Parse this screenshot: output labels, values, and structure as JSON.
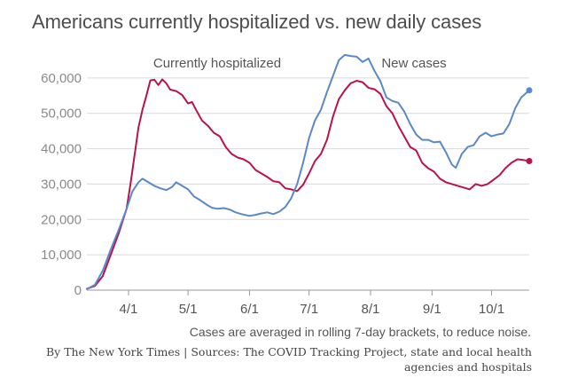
{
  "title": "Americans currently hospitalized vs. new daily cases",
  "note": "Cases are averaged in rolling 7-day brackets, to reduce noise.",
  "source": "By The New York Times | Sources: The COVID Tracking Project, state and local health agencies and hospitals",
  "chart_data": {
    "type": "line",
    "title": "Americans currently hospitalized vs. new daily cases",
    "xlabel": "",
    "ylabel": "",
    "x_axis_type": "date",
    "xlim": [
      "2020-03-11",
      "2020-10-20"
    ],
    "ylim": [
      0,
      70000
    ],
    "grid": "horizontal",
    "legend": "none (series labels placed directly on chart)",
    "x_ticks": [
      {
        "date": "2020-04-01",
        "label": "4/1"
      },
      {
        "date": "2020-05-01",
        "label": "5/1"
      },
      {
        "date": "2020-06-01",
        "label": "6/1"
      },
      {
        "date": "2020-07-01",
        "label": "7/1"
      },
      {
        "date": "2020-08-01",
        "label": "8/1"
      },
      {
        "date": "2020-09-01",
        "label": "9/1"
      },
      {
        "date": "2020-10-01",
        "label": "10/1"
      }
    ],
    "y_ticks": [
      {
        "value": 0,
        "label": "0"
      },
      {
        "value": 10000,
        "label": "10,000"
      },
      {
        "value": 20000,
        "label": "20,000"
      },
      {
        "value": 30000,
        "label": "30,000"
      },
      {
        "value": 40000,
        "label": "40,000"
      },
      {
        "value": 50000,
        "label": "50,000"
      },
      {
        "value": 60000,
        "label": "60,000"
      }
    ],
    "series": [
      {
        "name": "Currently hospitalized",
        "color": "#b8134f",
        "points": [
          [
            "2020-03-11",
            400
          ],
          [
            "2020-03-15",
            1200
          ],
          [
            "2020-03-19",
            4000
          ],
          [
            "2020-03-23",
            10000
          ],
          [
            "2020-03-27",
            16000
          ],
          [
            "2020-03-31",
            23000
          ],
          [
            "2020-04-02",
            30000
          ],
          [
            "2020-04-04",
            38000
          ],
          [
            "2020-04-06",
            46000
          ],
          [
            "2020-04-08",
            51000
          ],
          [
            "2020-04-10",
            55000
          ],
          [
            "2020-04-12",
            59300
          ],
          [
            "2020-04-14",
            59500
          ],
          [
            "2020-04-16",
            58000
          ],
          [
            "2020-04-18",
            59600
          ],
          [
            "2020-04-20",
            58500
          ],
          [
            "2020-04-22",
            56700
          ],
          [
            "2020-04-25",
            56300
          ],
          [
            "2020-04-28",
            55200
          ],
          [
            "2020-05-01",
            52800
          ],
          [
            "2020-05-03",
            53200
          ],
          [
            "2020-05-05",
            51000
          ],
          [
            "2020-05-08",
            48000
          ],
          [
            "2020-05-11",
            46500
          ],
          [
            "2020-05-14",
            44500
          ],
          [
            "2020-05-17",
            43500
          ],
          [
            "2020-05-20",
            40500
          ],
          [
            "2020-05-23",
            38500
          ],
          [
            "2020-05-26",
            37500
          ],
          [
            "2020-05-29",
            37000
          ],
          [
            "2020-06-01",
            36000
          ],
          [
            "2020-06-04",
            34000
          ],
          [
            "2020-06-07",
            33000
          ],
          [
            "2020-06-10",
            32000
          ],
          [
            "2020-06-13",
            30800
          ],
          [
            "2020-06-16",
            30500
          ],
          [
            "2020-06-19",
            28800
          ],
          [
            "2020-06-22",
            28500
          ],
          [
            "2020-06-25",
            28000
          ],
          [
            "2020-06-28",
            29800
          ],
          [
            "2020-07-01",
            33000
          ],
          [
            "2020-07-04",
            36500
          ],
          [
            "2020-07-07",
            38500
          ],
          [
            "2020-07-10",
            42500
          ],
          [
            "2020-07-13",
            49000
          ],
          [
            "2020-07-16",
            54000
          ],
          [
            "2020-07-19",
            56500
          ],
          [
            "2020-07-22",
            58500
          ],
          [
            "2020-07-25",
            59200
          ],
          [
            "2020-07-28",
            58800
          ],
          [
            "2020-07-31",
            57200
          ],
          [
            "2020-08-03",
            56800
          ],
          [
            "2020-08-06",
            55500
          ],
          [
            "2020-08-09",
            52000
          ],
          [
            "2020-08-12",
            50000
          ],
          [
            "2020-08-15",
            46500
          ],
          [
            "2020-08-18",
            43500
          ],
          [
            "2020-08-21",
            40500
          ],
          [
            "2020-08-24",
            39500
          ],
          [
            "2020-08-27",
            36000
          ],
          [
            "2020-08-30",
            34500
          ],
          [
            "2020-09-02",
            33500
          ],
          [
            "2020-09-05",
            31500
          ],
          [
            "2020-09-08",
            30500
          ],
          [
            "2020-09-11",
            30000
          ],
          [
            "2020-09-14",
            29500
          ],
          [
            "2020-09-17",
            29000
          ],
          [
            "2020-09-20",
            28500
          ],
          [
            "2020-09-23",
            30000
          ],
          [
            "2020-09-26",
            29500
          ],
          [
            "2020-09-29",
            30000
          ],
          [
            "2020-10-02",
            31200
          ],
          [
            "2020-10-05",
            32500
          ],
          [
            "2020-10-08",
            34500
          ],
          [
            "2020-10-11",
            36000
          ],
          [
            "2020-10-14",
            37000
          ],
          [
            "2020-10-17",
            36800
          ],
          [
            "2020-10-20",
            36500
          ]
        ]
      },
      {
        "name": "New cases",
        "color": "#5b88c6",
        "points": [
          [
            "2020-03-11",
            300
          ],
          [
            "2020-03-15",
            1500
          ],
          [
            "2020-03-19",
            5500
          ],
          [
            "2020-03-23",
            11500
          ],
          [
            "2020-03-27",
            17000
          ],
          [
            "2020-03-31",
            23000
          ],
          [
            "2020-04-03",
            28000
          ],
          [
            "2020-04-06",
            30500
          ],
          [
            "2020-04-08",
            31500
          ],
          [
            "2020-04-11",
            30500
          ],
          [
            "2020-04-14",
            29500
          ],
          [
            "2020-04-17",
            28800
          ],
          [
            "2020-04-20",
            28300
          ],
          [
            "2020-04-23",
            29200
          ],
          [
            "2020-04-25",
            30500
          ],
          [
            "2020-04-28",
            29500
          ],
          [
            "2020-05-01",
            28500
          ],
          [
            "2020-05-04",
            26500
          ],
          [
            "2020-05-07",
            25500
          ],
          [
            "2020-05-10",
            24300
          ],
          [
            "2020-05-13",
            23300
          ],
          [
            "2020-05-16",
            23000
          ],
          [
            "2020-05-19",
            23200
          ],
          [
            "2020-05-22",
            22800
          ],
          [
            "2020-05-25",
            22000
          ],
          [
            "2020-05-28",
            21500
          ],
          [
            "2020-06-01",
            21000
          ],
          [
            "2020-06-04",
            21300
          ],
          [
            "2020-06-07",
            21700
          ],
          [
            "2020-06-10",
            22000
          ],
          [
            "2020-06-13",
            21500
          ],
          [
            "2020-06-16",
            22200
          ],
          [
            "2020-06-19",
            23500
          ],
          [
            "2020-06-22",
            26000
          ],
          [
            "2020-06-25",
            30000
          ],
          [
            "2020-06-28",
            36000
          ],
          [
            "2020-07-01",
            43000
          ],
          [
            "2020-07-04",
            48000
          ],
          [
            "2020-07-07",
            51000
          ],
          [
            "2020-07-10",
            56000
          ],
          [
            "2020-07-13",
            60500
          ],
          [
            "2020-07-16",
            65000
          ],
          [
            "2020-07-19",
            66500
          ],
          [
            "2020-07-22",
            66200
          ],
          [
            "2020-07-25",
            66000
          ],
          [
            "2020-07-28",
            64500
          ],
          [
            "2020-07-31",
            65500
          ],
          [
            "2020-08-03",
            62000
          ],
          [
            "2020-08-06",
            59000
          ],
          [
            "2020-08-09",
            54500
          ],
          [
            "2020-08-12",
            53500
          ],
          [
            "2020-08-15",
            53000
          ],
          [
            "2020-08-18",
            50500
          ],
          [
            "2020-08-21",
            47000
          ],
          [
            "2020-08-24",
            44000
          ],
          [
            "2020-08-27",
            42500
          ],
          [
            "2020-08-30",
            42500
          ],
          [
            "2020-09-02",
            41800
          ],
          [
            "2020-09-05",
            42000
          ],
          [
            "2020-09-08",
            39000
          ],
          [
            "2020-09-11",
            35500
          ],
          [
            "2020-09-13",
            34600
          ],
          [
            "2020-09-16",
            38500
          ],
          [
            "2020-09-19",
            40500
          ],
          [
            "2020-09-22",
            41000
          ],
          [
            "2020-09-25",
            43500
          ],
          [
            "2020-09-28",
            44500
          ],
          [
            "2020-10-01",
            43500
          ],
          [
            "2020-10-04",
            44000
          ],
          [
            "2020-10-07",
            44300
          ],
          [
            "2020-10-10",
            47000
          ],
          [
            "2020-10-13",
            51500
          ],
          [
            "2020-10-16",
            54500
          ],
          [
            "2020-10-20",
            56500
          ]
        ]
      }
    ],
    "annotations": [
      "Currently hospitalized",
      "New cases"
    ]
  }
}
